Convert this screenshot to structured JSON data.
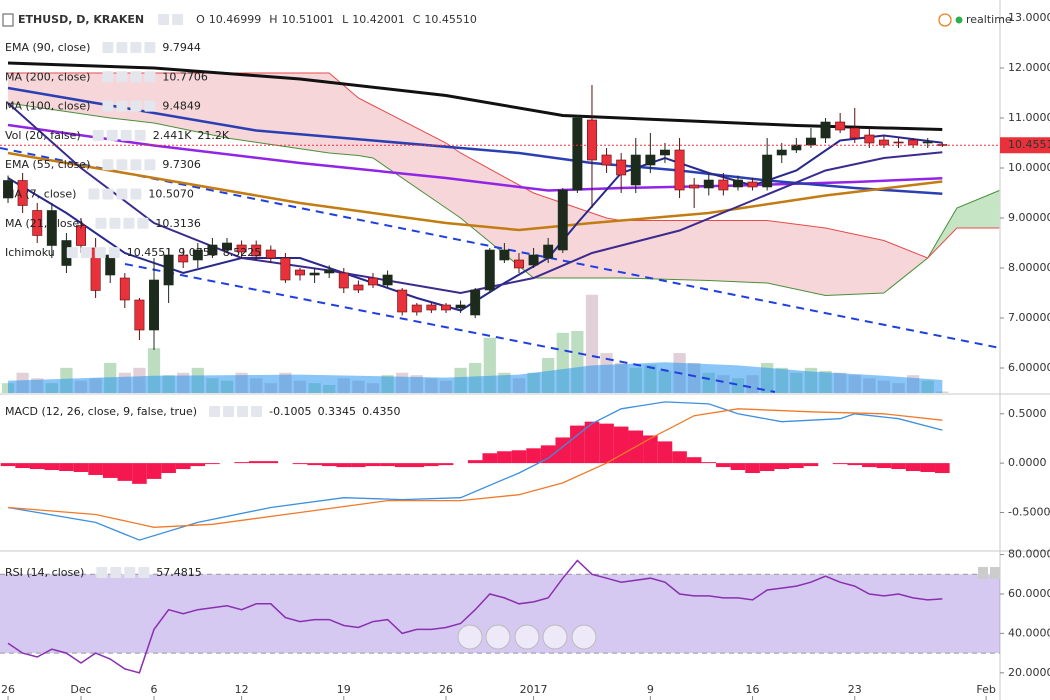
{
  "chart_data": [
    {
      "type": "candlestick",
      "title": "ETHUSD, D, KRAKEN",
      "quote": [
        "O",
        "10.46999",
        "H",
        "10.51001",
        "L",
        "10.42001",
        "C",
        "10.45510"
      ],
      "status": "realtime",
      "xlim": [
        -0.55,
        67.95
      ],
      "ylim": [
        5.5,
        13.36
      ],
      "yticks": [
        {
          "value": 13,
          "label": "13.00000"
        },
        {
          "value": 12,
          "label": "12.00000"
        },
        {
          "value": 11,
          "label": "11.00000"
        },
        {
          "value": 10,
          "label": "10.00000"
        },
        {
          "value": 9,
          "label": "9.00000"
        },
        {
          "value": 8,
          "label": "8.00000"
        },
        {
          "value": 7,
          "label": "7.00000"
        },
        {
          "value": 6,
          "label": "6.00000"
        }
      ],
      "last_price": {
        "value": 10.4551,
        "label": "10.45510"
      },
      "up_color": "#1d2b1d",
      "down_color": "#e8313a",
      "candles": {
        "open": [
          9.4,
          9.75,
          9.15,
          8.45,
          8.05,
          8.85,
          8.4,
          7.86,
          7.8,
          7.36,
          6.76,
          7.66,
          8.26,
          8.16,
          8.26,
          8.36,
          8.46,
          8.46,
          8.36,
          8.2,
          7.96,
          7.86,
          7.9,
          7.9,
          7.66,
          7.8,
          7.66,
          7.56,
          7.26,
          7.26,
          7.26,
          7.2,
          7.06,
          7.56,
          8.16,
          8.16,
          8.06,
          8.2,
          8.36,
          9.56,
          10.96,
          10.26,
          10.16,
          9.66,
          10.06,
          10.26,
          10.36,
          9.66,
          9.6,
          9.76,
          9.62,
          9.72,
          9.62,
          10.26,
          10.36,
          10.46,
          10.6,
          10.92,
          10.8,
          10.66,
          10.56,
          10.52,
          10.56,
          10.5,
          10.46999
        ],
        "high": [
          9.85,
          9.9,
          9.3,
          9.3,
          8.7,
          9.0,
          8.6,
          8.4,
          7.9,
          7.4,
          8.2,
          8.4,
          8.4,
          8.5,
          8.6,
          8.6,
          8.55,
          8.55,
          8.45,
          8.3,
          8.0,
          8.0,
          8.05,
          8.0,
          7.75,
          7.9,
          7.95,
          7.6,
          7.3,
          7.3,
          7.3,
          7.35,
          7.6,
          8.4,
          8.5,
          8.3,
          8.4,
          8.6,
          9.6,
          11.06,
          11.66,
          10.4,
          10.3,
          10.6,
          10.7,
          10.5,
          10.6,
          9.8,
          9.9,
          9.9,
          9.85,
          9.8,
          10.6,
          10.5,
          10.6,
          10.8,
          11.0,
          11.1,
          11.2,
          10.8,
          10.65,
          10.6,
          10.6,
          10.6,
          10.51001
        ],
        "low": [
          9.3,
          9.1,
          8.5,
          8.2,
          7.9,
          8.3,
          7.4,
          7.7,
          7.2,
          6.56,
          6.36,
          7.3,
          8.0,
          8.0,
          8.2,
          8.3,
          8.2,
          8.15,
          8.1,
          7.7,
          7.75,
          7.7,
          7.8,
          7.5,
          7.5,
          7.6,
          7.6,
          7.05,
          7.05,
          7.1,
          7.1,
          7.1,
          7.0,
          7.5,
          8.1,
          7.9,
          8.0,
          8.1,
          8.3,
          9.5,
          9.2,
          9.9,
          9.5,
          9.5,
          9.9,
          10.1,
          9.4,
          9.2,
          9.45,
          9.45,
          9.55,
          9.55,
          9.55,
          10.1,
          10.3,
          10.4,
          10.5,
          10.7,
          10.5,
          10.4,
          10.4,
          10.4,
          10.4,
          10.4,
          10.42001
        ],
        "close": [
          9.75,
          9.25,
          8.65,
          9.15,
          8.55,
          8.45,
          7.55,
          8.26,
          7.36,
          6.76,
          7.76,
          8.26,
          8.12,
          8.36,
          8.46,
          8.5,
          8.32,
          8.24,
          8.2,
          7.76,
          7.86,
          7.9,
          7.96,
          7.6,
          7.56,
          7.66,
          7.86,
          7.12,
          7.12,
          7.16,
          7.16,
          7.26,
          7.56,
          8.36,
          8.36,
          8.0,
          8.26,
          8.46,
          9.56,
          11.0,
          10.16,
          10.06,
          9.86,
          10.26,
          10.26,
          10.36,
          9.56,
          9.6,
          9.76,
          9.56,
          9.76,
          9.62,
          10.26,
          10.36,
          10.46,
          10.6,
          10.92,
          10.76,
          10.6,
          10.5,
          10.46,
          10.5,
          10.46,
          10.52,
          10.4551
        ]
      },
      "series": [
        {
          "name": "EMA (90, close)",
          "legend_value": "9.7944",
          "color": "#9124e6",
          "width": 2.5,
          "x": [
            0,
            10,
            20,
            30,
            37,
            42,
            50,
            58,
            64
          ],
          "values": [
            10.86,
            10.45,
            10.1,
            9.8,
            9.55,
            9.6,
            9.65,
            9.72,
            9.7944
          ]
        },
        {
          "name": "MA (200, close)",
          "legend_value": "10.7706",
          "color": "#111111",
          "width": 3,
          "x": [
            0,
            10,
            20,
            30,
            38,
            46,
            54,
            64
          ],
          "values": [
            12.1,
            12.0,
            11.78,
            11.45,
            11.05,
            10.95,
            10.85,
            10.7706
          ]
        },
        {
          "name": "MA (100, close)",
          "legend_value": "9.4849",
          "color": "#2b3fb5",
          "width": 2.5,
          "x": [
            0,
            10,
            17,
            25,
            35,
            40,
            46,
            52,
            58,
            64
          ],
          "values": [
            11.6,
            11.1,
            10.75,
            10.55,
            10.3,
            10.1,
            9.95,
            9.75,
            9.6,
            9.4849
          ]
        },
        {
          "name": "EMA (55, close)",
          "legend_value": "9.7306",
          "color": "#c27c12",
          "width": 2.5,
          "x": [
            0,
            10,
            20,
            30,
            35,
            40,
            48,
            56,
            64
          ],
          "values": [
            10.3,
            9.8,
            9.3,
            8.9,
            8.76,
            8.9,
            9.1,
            9.45,
            9.7306
          ]
        },
        {
          "name": "MA (7, close)",
          "legend_value": "10.5070",
          "color": "#27298c",
          "width": 2,
          "x": [
            0,
            4,
            8,
            12,
            16,
            20,
            24,
            28,
            31,
            34,
            37,
            39,
            42,
            45,
            48,
            51,
            54,
            57,
            60,
            64
          ],
          "values": [
            9.8,
            9.1,
            8.3,
            7.9,
            8.2,
            8.2,
            7.8,
            7.4,
            7.15,
            7.7,
            8.2,
            8.9,
            9.9,
            10.2,
            9.9,
            9.65,
            9.95,
            10.55,
            10.65,
            10.507
          ]
        },
        {
          "name": "MA (21, close)",
          "legend_value": "10.3136",
          "color": "#3b2b8f",
          "width": 2,
          "x": [
            0,
            5,
            10,
            16,
            22,
            28,
            31,
            36,
            40,
            46,
            51,
            56,
            60,
            64
          ],
          "values": [
            11.3,
            10.0,
            8.9,
            8.2,
            7.95,
            7.65,
            7.5,
            7.8,
            8.3,
            8.75,
            9.35,
            9.95,
            10.2,
            10.3136
          ]
        }
      ],
      "ichimoku": {
        "name": "Ichimoku",
        "legend_values": [
          "10.4551",
          "9.0750",
          "8.5225"
        ],
        "lead1_color": "#4a8f3a",
        "lead2_color": "#e84a4a",
        "up_fill": "rgba(90,180,90,0.35)",
        "down_fill": "rgba(225,120,125,0.3)",
        "x": [
          0,
          7,
          10,
          15,
          22,
          24,
          25,
          30,
          31,
          36,
          41,
          42,
          48,
          52,
          56,
          60,
          63,
          65,
          67.9
        ],
        "lead1": [
          11.3,
          11.0,
          10.9,
          10.6,
          10.3,
          10.25,
          10.2,
          9.2,
          9.0,
          7.8,
          7.8,
          7.8,
          7.75,
          7.7,
          7.45,
          7.5,
          8.2,
          9.2,
          9.55
        ],
        "lead2": [
          11.9,
          11.9,
          11.9,
          11.9,
          11.9,
          11.4,
          11.25,
          10.5,
          10.3,
          9.5,
          9.0,
          8.95,
          8.95,
          8.95,
          8.8,
          8.55,
          8.2,
          8.8,
          8.8
        ]
      },
      "volume": {
        "name": "Vol (20, false)",
        "legend_values": [
          "2.441K",
          "21.2K"
        ],
        "ylim": [
          0,
          640
        ],
        "up_color": "rgba(90,170,100,0.4)",
        "down_color": "rgba(170,120,140,0.35)",
        "ma_color": "rgba(40,150,240,0.55)",
        "values": [
          16,
          33,
          24,
          16,
          41,
          20,
          24,
          49,
          33,
          41,
          73,
          29,
          33,
          41,
          24,
          20,
          33,
          24,
          16,
          33,
          20,
          16,
          13,
          24,
          20,
          16,
          29,
          33,
          29,
          24,
          20,
          41,
          49,
          90,
          33,
          24,
          33,
          57,
          98,
          101,
          160,
          65,
          49,
          41,
          46,
          36,
          65,
          49,
          33,
          29,
          24,
          29,
          49,
          41,
          33,
          41,
          36,
          33,
          29,
          24,
          20,
          16,
          29,
          20,
          2.441
        ],
        "ma_x": [
          0,
          10,
          20,
          30,
          35,
          40,
          45,
          50,
          55,
          60,
          64
        ],
        "ma": [
          20,
          28,
          30,
          25,
          30,
          45,
          50,
          45,
          35,
          28,
          21.2
        ]
      }
    },
    {
      "type": "macd",
      "title": "MACD (12, 26, close, 9, false, true)",
      "xlim": [
        -0.55,
        67.95
      ],
      "ylim": [
        -0.88,
        0.69
      ],
      "yticks": [
        {
          "value": 0.5,
          "label": "0.5000"
        },
        {
          "value": 0,
          "label": "0.0000"
        },
        {
          "value": -0.5,
          "label": "-0.5000"
        }
      ],
      "histogram": {
        "legend_value": "-0.1005",
        "color": "#f5174f",
        "values": [
          -0.03,
          -0.05,
          -0.06,
          -0.07,
          -0.08,
          -0.09,
          -0.12,
          -0.15,
          -0.18,
          -0.21,
          -0.16,
          -0.1,
          -0.06,
          -0.03,
          -0.01,
          0.0,
          0.01,
          0.02,
          0.02,
          0.0,
          -0.01,
          -0.02,
          -0.03,
          -0.04,
          -0.04,
          -0.03,
          -0.03,
          -0.04,
          -0.04,
          -0.03,
          -0.02,
          0.0,
          0.03,
          0.1,
          0.12,
          0.13,
          0.15,
          0.18,
          0.26,
          0.38,
          0.42,
          0.4,
          0.37,
          0.33,
          0.28,
          0.22,
          0.12,
          0.06,
          0.01,
          -0.04,
          -0.07,
          -0.1,
          -0.08,
          -0.06,
          -0.05,
          -0.03,
          0.0,
          -0.01,
          -0.02,
          -0.04,
          -0.05,
          -0.06,
          -0.08,
          -0.09,
          -0.1005
        ]
      },
      "series": [
        {
          "legend_value": "0.3345",
          "color": "#3d8fe0",
          "x": [
            0,
            6,
            9,
            13,
            18,
            23,
            27,
            31,
            35,
            37,
            40,
            42,
            45,
            48,
            50,
            53,
            57,
            58,
            61,
            64
          ],
          "values": [
            -0.45,
            -0.6,
            -0.78,
            -0.6,
            -0.45,
            -0.35,
            -0.37,
            -0.35,
            -0.1,
            0.05,
            0.4,
            0.55,
            0.62,
            0.6,
            0.5,
            0.42,
            0.45,
            0.5,
            0.45,
            0.3345
          ]
        },
        {
          "legend_value": "0.4350",
          "color": "#f07a2a",
          "x": [
            0,
            6,
            10,
            14,
            20,
            26,
            31,
            35,
            38,
            41,
            44,
            47,
            50,
            55,
            60,
            64
          ],
          "values": [
            -0.45,
            -0.52,
            -0.65,
            -0.62,
            -0.5,
            -0.38,
            -0.38,
            -0.32,
            -0.2,
            0.0,
            0.25,
            0.48,
            0.55,
            0.52,
            0.5,
            0.435
          ]
        }
      ]
    },
    {
      "type": "line",
      "title": "RSI (14, close)",
      "legend_value": "57.4815",
      "color": "#8a2fb0",
      "band": [
        30,
        70
      ],
      "band_color": "rgba(150,120,220,0.4)",
      "xlim": [
        -0.55,
        67.95
      ],
      "ylim": [
        6.2,
        81.3
      ],
      "yticks": [
        {
          "value": 80,
          "label": "80.0000"
        },
        {
          "value": 60,
          "label": "60.0000"
        },
        {
          "value": 40,
          "label": "40.0000"
        },
        {
          "value": 20,
          "label": "20.0000"
        }
      ],
      "xticks": [
        {
          "value": 0,
          "label": "26"
        },
        {
          "value": 5,
          "label": "Dec"
        },
        {
          "value": 10,
          "label": "6"
        },
        {
          "value": 16,
          "label": "12"
        },
        {
          "value": 23,
          "label": "19"
        },
        {
          "value": 30,
          "label": "26"
        },
        {
          "value": 36,
          "label": "2017"
        },
        {
          "value": 44,
          "label": "9"
        },
        {
          "value": 51,
          "label": "16"
        },
        {
          "value": 58,
          "label": "23"
        },
        {
          "value": 67,
          "label": "Feb"
        }
      ],
      "values": [
        35,
        30,
        28,
        32,
        30,
        25,
        30,
        27,
        22,
        20,
        42,
        52,
        50,
        52,
        53,
        54,
        52,
        55,
        55,
        48,
        46,
        47,
        47,
        44,
        43,
        46,
        47,
        40,
        42,
        42,
        43,
        45,
        52,
        60,
        58,
        55,
        56,
        58,
        68,
        77,
        70,
        68,
        66,
        67,
        68,
        66,
        60,
        59,
        59,
        58,
        58,
        57,
        62,
        63,
        64,
        66,
        69,
        66,
        64,
        60,
        59,
        60,
        58,
        57,
        57.4815
      ]
    }
  ]
}
